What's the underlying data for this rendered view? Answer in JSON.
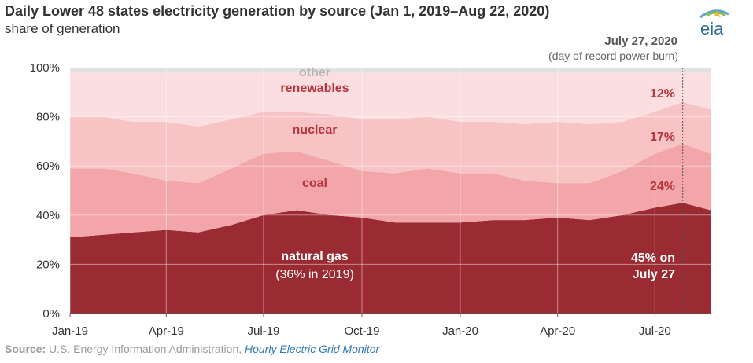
{
  "header": {
    "title": "Daily Lower 48 states electricity generation by source (Jan 1, 2019–Aug 22, 2020)",
    "subtitle": "share of generation"
  },
  "logo": {
    "text": "eia",
    "colors": [
      "#5fa3c9",
      "#8cc04b",
      "#f2b33d"
    ]
  },
  "source": {
    "label": "Source:",
    "text": "U.S. Energy Information Administration,",
    "link": "Hourly Electric Grid Monitor"
  },
  "annotation": {
    "date": "July 27, 2020",
    "note": "(day of record power burn)",
    "gas_line1": "45% on",
    "gas_line2": "July 27",
    "coal_pct": "24%",
    "nuclear_pct": "17%",
    "renew_pct": "12%"
  },
  "chart_data": {
    "type": "area",
    "stacked": true,
    "percent": true,
    "xlabel": "",
    "ylabel": "",
    "ylim": [
      0,
      100
    ],
    "xlim": [
      "2019-01-01",
      "2020-08-22"
    ],
    "y_ticks": [
      "0%",
      "20%",
      "40%",
      "60%",
      "80%",
      "100%"
    ],
    "x_ticks": [
      "Jan-19",
      "Apr-19",
      "Jul-19",
      "Oct-19",
      "Jan-20",
      "Apr-20",
      "Jul-20"
    ],
    "x_tick_dates": [
      "2019-01-01",
      "2019-04-01",
      "2019-07-01",
      "2019-10-01",
      "2020-01-01",
      "2020-04-01",
      "2020-07-01"
    ],
    "grid": true,
    "colors": {
      "natural gas": "#9b2b33",
      "coal": "#f2a6a9",
      "nuclear": "#f7c3c5",
      "renewables": "#fbdfe0",
      "other": "#e1e1e1"
    },
    "x": [
      "2019-01-01",
      "2019-02-01",
      "2019-03-01",
      "2019-04-01",
      "2019-05-01",
      "2019-06-01",
      "2019-07-01",
      "2019-08-01",
      "2019-09-01",
      "2019-10-01",
      "2019-11-01",
      "2019-12-01",
      "2020-01-01",
      "2020-02-01",
      "2020-03-01",
      "2020-04-01",
      "2020-05-01",
      "2020-06-01",
      "2020-07-01",
      "2020-07-27",
      "2020-08-22"
    ],
    "series": [
      {
        "name": "natural gas",
        "values": [
          31,
          32,
          33,
          34,
          33,
          36,
          40,
          42,
          40,
          39,
          37,
          37,
          37,
          38,
          38,
          39,
          38,
          40,
          43,
          45,
          42
        ]
      },
      {
        "name": "coal",
        "values": [
          28,
          27,
          24,
          20,
          20,
          23,
          25,
          24,
          22,
          19,
          20,
          22,
          20,
          19,
          16,
          14,
          15,
          18,
          22,
          24,
          23
        ]
      },
      {
        "name": "nuclear",
        "values": [
          21,
          21,
          21,
          24,
          23,
          20,
          17,
          16,
          19,
          21,
          22,
          21,
          21,
          21,
          23,
          25,
          24,
          20,
          17,
          17,
          18
        ]
      },
      {
        "name": "renewables",
        "values": [
          18,
          18,
          20,
          20,
          22,
          19,
          16,
          16,
          17,
          19,
          19,
          18,
          20,
          20,
          21,
          20,
          21,
          20,
          16,
          12,
          15
        ]
      },
      {
        "name": "other",
        "values": [
          2,
          2,
          2,
          2,
          2,
          2,
          2,
          2,
          2,
          2,
          2,
          2,
          2,
          2,
          2,
          2,
          2,
          2,
          2,
          2,
          2
        ]
      }
    ],
    "annotation_date": "2020-07-27",
    "labels": {
      "gas": "natural gas",
      "gas_sub": "(36% in 2019)",
      "coal": "coal",
      "nuclear": "nuclear",
      "renewables": "renewables",
      "other": "other"
    }
  }
}
